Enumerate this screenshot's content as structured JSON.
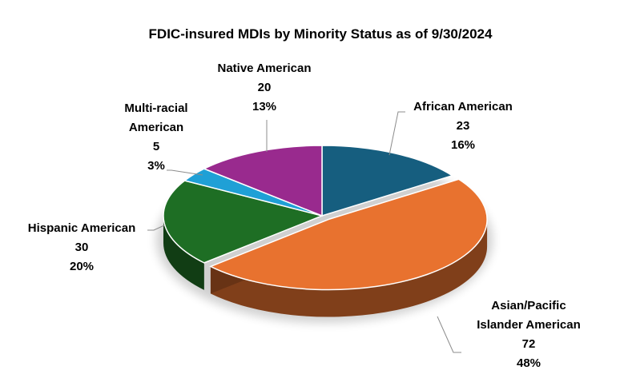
{
  "chart_data": {
    "type": "pie",
    "title": "FDIC-insured MDIs by Minority Status as of 9/30/2024",
    "slices": [
      {
        "label_lines": [
          "African American"
        ],
        "value": "23",
        "percent": "16%",
        "color": "#165e7f",
        "exploded": false
      },
      {
        "label_lines": [
          "Asian/Pacific",
          "Islander American"
        ],
        "value": "72",
        "percent": "48%",
        "color": "#e8722f",
        "exploded": true
      },
      {
        "label_lines": [
          "Hispanic American"
        ],
        "value": "30",
        "percent": "20%",
        "color": "#1e6e24",
        "exploded": false
      },
      {
        "label_lines": [
          "Multi-racial",
          "American"
        ],
        "value": "5",
        "percent": "3%",
        "color": "#1fa0d6",
        "exploded": false
      },
      {
        "label_lines": [
          "Native American"
        ],
        "value": "20",
        "percent": "13%",
        "color": "#992a8e",
        "exploded": false
      }
    ],
    "legend": "none",
    "style": "3d-pie"
  }
}
